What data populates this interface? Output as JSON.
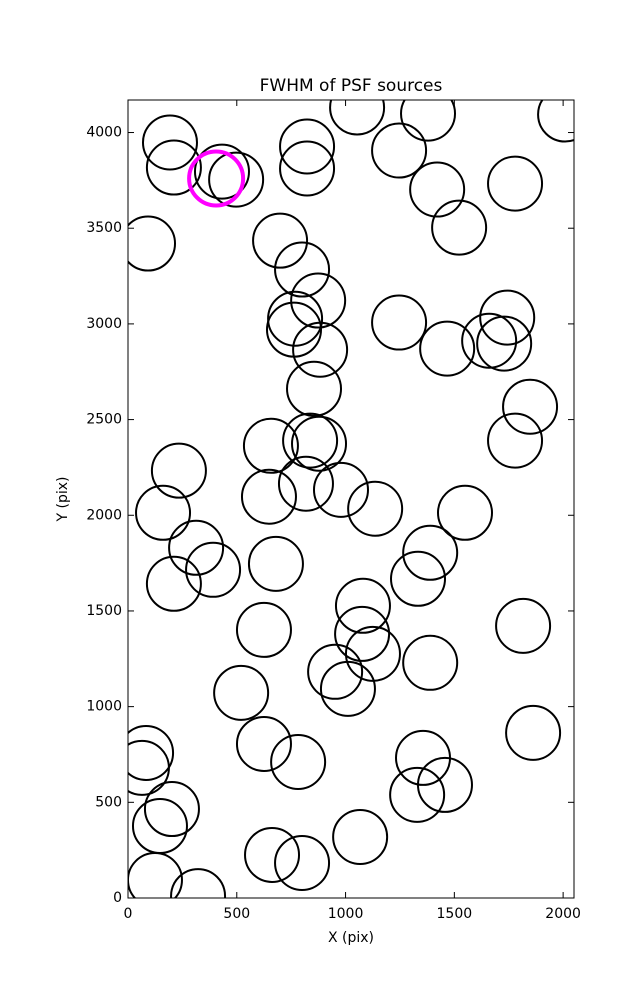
{
  "chart_data": {
    "type": "scatter",
    "title": "FWHM of PSF sources",
    "xlabel": "X (pix)",
    "ylabel": "Y (pix)",
    "xlim": [
      0,
      2050
    ],
    "ylim": [
      0,
      4170
    ],
    "xticks": [
      0,
      500,
      1000,
      1500,
      2000
    ],
    "yticks": [
      0,
      500,
      1000,
      1500,
      2000,
      2500,
      3000,
      3500,
      4000
    ],
    "series": [
      {
        "color": "#000000",
        "x": [
          193,
          211,
          432,
          497,
          92,
          1053,
          823,
          823,
          1379,
          1246,
          2009,
          1421,
          1779,
          1522,
          699,
          800,
          874,
          768,
          763,
          883,
          855,
          1246,
          1467,
          1660,
          1743,
          1729,
          1848,
          1779,
          657,
          837,
          878,
          818,
          648,
          979,
          1136,
          1549,
          234,
          161,
          313,
          391,
          211,
          680,
          1389,
          1333,
          1080,
          1076,
          1126,
          952,
          1011,
          1389,
          1816,
          625,
          520,
          625,
          782,
          83,
          64,
          202,
          147,
          1356,
          1457,
          1329,
          1862,
          1067,
          662,
          800,
          124,
          322
        ],
        "values": [
          3948,
          3817,
          3796,
          3754,
          3420,
          4131,
          3927,
          3812,
          4099,
          3906,
          4094,
          3702,
          3733,
          3503,
          3435,
          3284,
          3122,
          3027,
          2970,
          2865,
          2661,
          3007,
          2871,
          2912,
          3033,
          2897,
          2567,
          2390,
          2363,
          2390,
          2374,
          2165,
          2097,
          2133,
          2034,
          2013,
          2233,
          2013,
          1830,
          1715,
          1642,
          1746,
          1804,
          1668,
          1527,
          1380,
          1276,
          1182,
          1093,
          1229,
          1422,
          1401,
          1072,
          805,
          711,
          758,
          680,
          465,
          376,
          732,
          591,
          539,
          863,
          319,
          225,
          183,
          94,
          10
        ]
      },
      {
        "color": "#ff00ff",
        "x": [
          405
        ],
        "values": [
          3760
        ]
      }
    ]
  }
}
